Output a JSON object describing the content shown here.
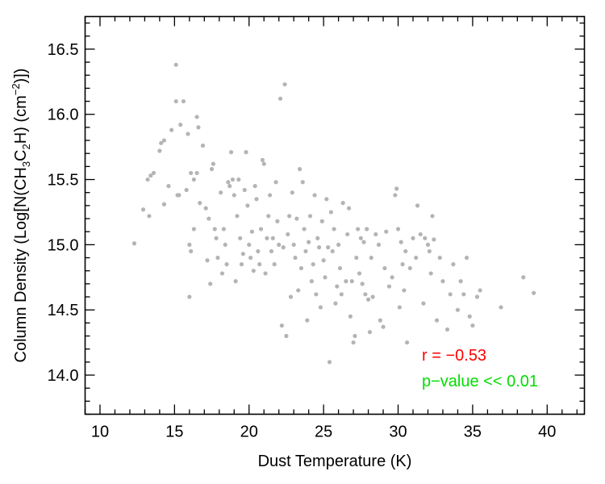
{
  "chart_data": {
    "type": "scatter",
    "xlabel": "Dust Temperature (K)",
    "ylabel": {
      "parts": [
        "Column Density (Log[N(CH",
        "3",
        "C",
        "2",
        "H) (cm",
        "−2",
        ")])"
      ]
    },
    "xlim": [
      9,
      42.5
    ],
    "ylim": [
      13.7,
      16.75
    ],
    "x_ticks": [
      10,
      15,
      20,
      25,
      30,
      35,
      40
    ],
    "x_tick_labels": [
      "10",
      "15",
      "20",
      "25",
      "30",
      "35",
      "40"
    ],
    "y_ticks": [
      14.0,
      14.5,
      15.0,
      15.5,
      16.0,
      16.5
    ],
    "y_tick_labels": [
      "14.0",
      "14.5",
      "15.0",
      "15.5",
      "16.0",
      "16.5"
    ],
    "grid": false,
    "point_color": "#b4b4b4",
    "annotations": [
      {
        "text": "r = −0.53",
        "color": "#ff0000"
      },
      {
        "text": "p−value << 0.01",
        "color": "#00dd00"
      }
    ],
    "points": [
      [
        12.3,
        15.01
      ],
      [
        12.9,
        15.27
      ],
      [
        13.2,
        15.5
      ],
      [
        13.3,
        15.22
      ],
      [
        13.4,
        15.53
      ],
      [
        13.6,
        15.55
      ],
      [
        14.0,
        15.72
      ],
      [
        14.1,
        15.78
      ],
      [
        14.3,
        15.8
      ],
      [
        14.3,
        15.31
      ],
      [
        14.6,
        15.45
      ],
      [
        14.8,
        15.88
      ],
      [
        15.1,
        16.38
      ],
      [
        15.1,
        16.1
      ],
      [
        15.2,
        15.38
      ],
      [
        15.3,
        15.38
      ],
      [
        15.4,
        15.92
      ],
      [
        15.6,
        16.1
      ],
      [
        15.8,
        15.42
      ],
      [
        15.9,
        15.85
      ],
      [
        16.0,
        15.0
      ],
      [
        16.0,
        14.6
      ],
      [
        16.1,
        14.95
      ],
      [
        16.1,
        15.55
      ],
      [
        16.3,
        15.12
      ],
      [
        16.3,
        15.5
      ],
      [
        16.5,
        15.55
      ],
      [
        16.5,
        15.98
      ],
      [
        16.6,
        15.9
      ],
      [
        16.7,
        15.32
      ],
      [
        16.9,
        15.76
      ],
      [
        17.1,
        15.28
      ],
      [
        17.2,
        14.88
      ],
      [
        17.3,
        15.2
      ],
      [
        17.4,
        14.7
      ],
      [
        17.5,
        15.58
      ],
      [
        17.6,
        15.62
      ],
      [
        17.7,
        15.12
      ],
      [
        17.8,
        15.05
      ],
      [
        17.9,
        14.9
      ],
      [
        18.1,
        15.4
      ],
      [
        18.2,
        14.78
      ],
      [
        18.3,
        15.12
      ],
      [
        18.4,
        15.0
      ],
      [
        18.5,
        14.85
      ],
      [
        18.6,
        15.48
      ],
      [
        18.7,
        15.45
      ],
      [
        18.8,
        15.71
      ],
      [
        18.9,
        15.5
      ],
      [
        19.0,
        15.38
      ],
      [
        19.1,
        14.72
      ],
      [
        19.2,
        15.22
      ],
      [
        19.3,
        15.5
      ],
      [
        19.4,
        15.05
      ],
      [
        19.5,
        14.85
      ],
      [
        19.6,
        14.93
      ],
      [
        19.7,
        15.42
      ],
      [
        19.8,
        15.71
      ],
      [
        19.9,
        15.3
      ],
      [
        20.0,
        15.0
      ],
      [
        20.1,
        14.9
      ],
      [
        20.2,
        15.1
      ],
      [
        20.3,
        14.8
      ],
      [
        20.4,
        15.45
      ],
      [
        20.5,
        15.35
      ],
      [
        20.6,
        14.95
      ],
      [
        20.7,
        14.85
      ],
      [
        20.8,
        15.12
      ],
      [
        20.9,
        15.65
      ],
      [
        21.0,
        15.62
      ],
      [
        21.1,
        14.78
      ],
      [
        21.2,
        15.05
      ],
      [
        21.3,
        15.22
      ],
      [
        21.4,
        15.38
      ],
      [
        21.5,
        14.95
      ],
      [
        21.6,
        15.05
      ],
      [
        21.7,
        14.85
      ],
      [
        21.8,
        15.48
      ],
      [
        21.9,
        15.18
      ],
      [
        22.0,
        15.0
      ],
      [
        22.1,
        16.12
      ],
      [
        22.2,
        14.38
      ],
      [
        22.3,
        14.98
      ],
      [
        22.4,
        16.23
      ],
      [
        22.5,
        14.3
      ],
      [
        22.6,
        15.08
      ],
      [
        22.7,
        15.22
      ],
      [
        22.8,
        14.6
      ],
      [
        22.9,
        15.4
      ],
      [
        23.0,
        15.0
      ],
      [
        23.1,
        14.9
      ],
      [
        23.2,
        15.2
      ],
      [
        23.3,
        14.65
      ],
      [
        23.4,
        15.58
      ],
      [
        23.5,
        14.82
      ],
      [
        23.6,
        15.48
      ],
      [
        23.7,
        15.12
      ],
      [
        23.8,
        14.95
      ],
      [
        23.9,
        14.42
      ],
      [
        24.0,
        15.02
      ],
      [
        24.1,
        15.22
      ],
      [
        24.2,
        14.72
      ],
      [
        24.3,
        14.85
      ],
      [
        24.4,
        15.38
      ],
      [
        24.5,
        14.62
      ],
      [
        24.6,
        15.05
      ],
      [
        24.7,
        14.98
      ],
      [
        24.8,
        14.52
      ],
      [
        24.9,
        15.18
      ],
      [
        25.0,
        14.88
      ],
      [
        25.1,
        14.75
      ],
      [
        25.2,
        15.35
      ],
      [
        25.3,
        14.98
      ],
      [
        25.4,
        14.1
      ],
      [
        25.5,
        15.25
      ],
      [
        25.6,
        14.95
      ],
      [
        25.7,
        15.12
      ],
      [
        25.8,
        14.55
      ],
      [
        25.9,
        14.68
      ],
      [
        26.0,
        15.0
      ],
      [
        26.1,
        14.82
      ],
      [
        26.2,
        14.62
      ],
      [
        26.3,
        15.32
      ],
      [
        26.5,
        14.72
      ],
      [
        26.6,
        15.08
      ],
      [
        26.7,
        15.28
      ],
      [
        26.8,
        14.45
      ],
      [
        26.9,
        14.72
      ],
      [
        27.0,
        14.25
      ],
      [
        27.1,
        14.3
      ],
      [
        27.2,
        14.9
      ],
      [
        27.3,
        15.12
      ],
      [
        27.4,
        14.78
      ],
      [
        27.5,
        15.05
      ],
      [
        27.6,
        14.7
      ],
      [
        27.7,
        15.02
      ],
      [
        27.8,
        14.62
      ],
      [
        27.9,
        15.12
      ],
      [
        28.0,
        14.58
      ],
      [
        28.1,
        14.33
      ],
      [
        28.2,
        14.9
      ],
      [
        28.3,
        14.6
      ],
      [
        28.5,
        15.08
      ],
      [
        28.7,
        15.0
      ],
      [
        28.8,
        14.42
      ],
      [
        29.0,
        14.37
      ],
      [
        29.1,
        14.82
      ],
      [
        29.2,
        15.1
      ],
      [
        29.4,
        14.68
      ],
      [
        29.6,
        14.75
      ],
      [
        29.8,
        15.38
      ],
      [
        29.9,
        15.43
      ],
      [
        30.0,
        15.12
      ],
      [
        30.1,
        14.52
      ],
      [
        30.2,
        15.02
      ],
      [
        30.3,
        14.85
      ],
      [
        30.4,
        14.65
      ],
      [
        30.5,
        14.95
      ],
      [
        30.6,
        14.25
      ],
      [
        30.8,
        14.82
      ],
      [
        31.0,
        15.05
      ],
      [
        31.2,
        14.9
      ],
      [
        31.3,
        15.3
      ],
      [
        31.5,
        15.08
      ],
      [
        31.7,
        14.55
      ],
      [
        31.8,
        15.05
      ],
      [
        32.0,
        15.0
      ],
      [
        32.1,
        14.95
      ],
      [
        32.2,
        14.78
      ],
      [
        32.3,
        15.22
      ],
      [
        32.4,
        15.04
      ],
      [
        32.6,
        14.42
      ],
      [
        32.8,
        14.9
      ],
      [
        33.0,
        14.72
      ],
      [
        33.3,
        14.35
      ],
      [
        33.5,
        14.62
      ],
      [
        33.7,
        14.85
      ],
      [
        34.0,
        14.5
      ],
      [
        34.2,
        14.72
      ],
      [
        34.4,
        14.62
      ],
      [
        34.6,
        14.9
      ],
      [
        34.8,
        14.45
      ],
      [
        35.0,
        14.38
      ],
      [
        35.3,
        14.6
      ],
      [
        35.5,
        14.65
      ],
      [
        36.9,
        14.52
      ],
      [
        38.4,
        14.75
      ],
      [
        39.1,
        14.63
      ]
    ]
  }
}
